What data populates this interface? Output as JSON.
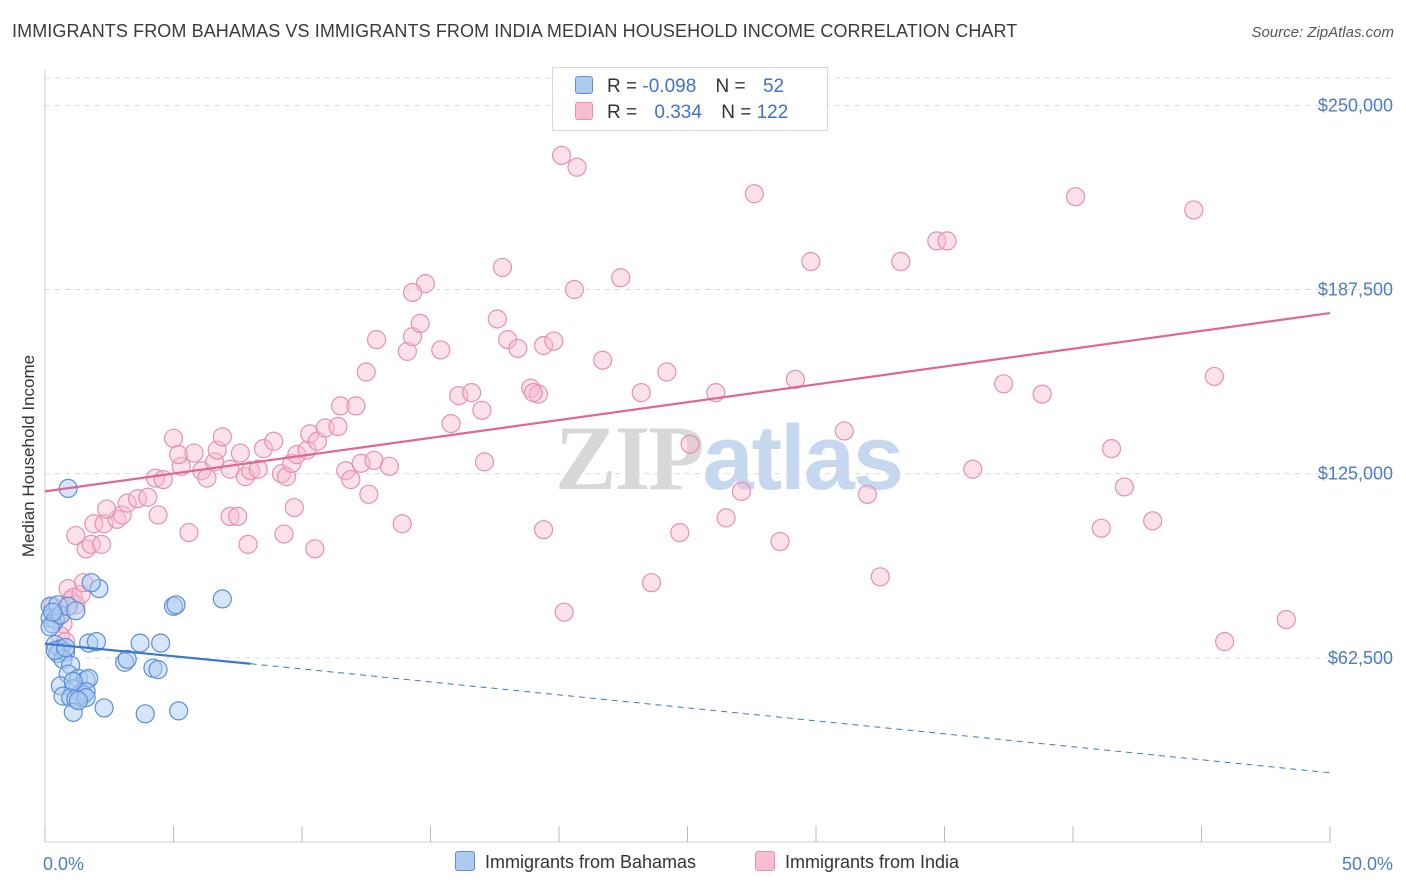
{
  "header": {
    "title": "IMMIGRANTS FROM BAHAMAS VS IMMIGRANTS FROM INDIA MEDIAN HOUSEHOLD INCOME CORRELATION CHART",
    "source": "Source: ZipAtlas.com"
  },
  "watermark": {
    "zip": "ZIP",
    "atlas": "atlas"
  },
  "legend_top": {
    "rows": [
      {
        "r_label": "R =",
        "r_value": "-0.098",
        "n_label": "N =",
        "n_value": "52"
      },
      {
        "r_label": "R =",
        "r_value": "0.334",
        "n_label": "N =",
        "n_value": "122"
      }
    ]
  },
  "legend_bottom": {
    "items": [
      {
        "label": "Immigrants from Bahamas"
      },
      {
        "label": "Immigrants from India"
      }
    ]
  },
  "colors": {
    "bahamas_fill": "#aecbf0",
    "bahamas_stroke": "#5b8fd6",
    "bahamas_line": "#3a78cf",
    "india_fill": "#f7bdd0",
    "india_stroke": "#e690b0",
    "india_line": "#e06695",
    "grid": "#d9d9d9",
    "tick_label": "#4a7cc6"
  },
  "chart_data": {
    "type": "scatter",
    "title": "IMMIGRANTS FROM BAHAMAS VS IMMIGRANTS FROM INDIA MEDIAN HOUSEHOLD INCOME CORRELATION CHART",
    "xlabel": "",
    "ylabel": "Median Household Income",
    "xlim": [
      0,
      50
    ],
    "ylim": [
      0,
      262000
    ],
    "y_ticks": [
      62500,
      125000,
      187500,
      250000
    ],
    "y_tick_labels": [
      "$62,500",
      "$125,000",
      "$187,500",
      "$250,000"
    ],
    "x_tick_labels": [
      "0.0%",
      "50.0%"
    ],
    "grid": "horizontal dashed",
    "legend_position": "top-center",
    "series": [
      {
        "name": "Immigrants from Bahamas",
        "r": -0.098,
        "n": 52,
        "trend": {
          "x0": 0,
          "y0": 67300,
          "x1": 8,
          "y1": 60500,
          "dash_x1": 50,
          "dash_y1": 23500
        },
        "points": [
          [
            0.2,
            80000
          ],
          [
            0.3,
            78000
          ],
          [
            0.2,
            76000
          ],
          [
            0.4,
            75500
          ],
          [
            0.3,
            74000
          ],
          [
            0.2,
            73000
          ],
          [
            0.5,
            80500
          ],
          [
            0.6,
            77000
          ],
          [
            0.9,
            80000
          ],
          [
            1.2,
            78500
          ],
          [
            0.4,
            67000
          ],
          [
            0.6,
            65500
          ],
          [
            0.5,
            64000
          ],
          [
            0.8,
            64500
          ],
          [
            0.7,
            62000
          ],
          [
            1.0,
            60000
          ],
          [
            0.9,
            57000
          ],
          [
            1.3,
            55500
          ],
          [
            1.6,
            55000
          ],
          [
            1.7,
            55500
          ],
          [
            0.6,
            53000
          ],
          [
            1.1,
            52000
          ],
          [
            1.4,
            50500
          ],
          [
            1.5,
            50000
          ],
          [
            1.6,
            51000
          ],
          [
            0.7,
            49500
          ],
          [
            1.0,
            49000
          ],
          [
            1.2,
            48500
          ],
          [
            1.6,
            49000
          ],
          [
            1.1,
            44000
          ],
          [
            2.3,
            45500
          ],
          [
            3.9,
            43500
          ],
          [
            5.2,
            44500
          ],
          [
            1.7,
            67500
          ],
          [
            3.7,
            67500
          ],
          [
            4.5,
            67500
          ],
          [
            3.1,
            61000
          ],
          [
            3.2,
            62000
          ],
          [
            4.2,
            59000
          ],
          [
            4.4,
            58500
          ],
          [
            5.0,
            80000
          ],
          [
            5.1,
            80500
          ],
          [
            6.9,
            82500
          ],
          [
            2.1,
            86000
          ],
          [
            1.8,
            88000
          ],
          [
            0.9,
            120000
          ],
          [
            0.3,
            78000
          ],
          [
            0.4,
            65000
          ],
          [
            0.8,
            66000
          ],
          [
            1.1,
            54500
          ],
          [
            1.3,
            48000
          ],
          [
            2.0,
            68000
          ]
        ]
      },
      {
        "name": "Immigrants from India",
        "r": 0.334,
        "n": 122,
        "trend": {
          "x0": 0,
          "y0": 119000,
          "x1": 50,
          "y1": 179500
        },
        "points": [
          [
            0.3,
            80000
          ],
          [
            0.5,
            77000
          ],
          [
            0.7,
            74000
          ],
          [
            0.6,
            70000
          ],
          [
            0.8,
            68000
          ],
          [
            1.0,
            82000
          ],
          [
            0.9,
            86000
          ],
          [
            1.1,
            83000
          ],
          [
            1.2,
            80500
          ],
          [
            1.4,
            84000
          ],
          [
            1.5,
            88000
          ],
          [
            1.2,
            104000
          ],
          [
            1.6,
            99500
          ],
          [
            1.8,
            101000
          ],
          [
            2.2,
            101000
          ],
          [
            1.9,
            108000
          ],
          [
            2.3,
            108000
          ],
          [
            2.8,
            109500
          ],
          [
            3.0,
            111000
          ],
          [
            2.4,
            113000
          ],
          [
            3.2,
            115000
          ],
          [
            3.6,
            116500
          ],
          [
            4.0,
            117000
          ],
          [
            4.4,
            111000
          ],
          [
            4.3,
            123500
          ],
          [
            4.6,
            123000
          ],
          [
            5.0,
            137000
          ],
          [
            5.3,
            127500
          ],
          [
            5.2,
            131500
          ],
          [
            5.8,
            132000
          ],
          [
            6.1,
            126000
          ],
          [
            6.3,
            123500
          ],
          [
            6.6,
            129000
          ],
          [
            6.7,
            133000
          ],
          [
            6.9,
            137500
          ],
          [
            7.2,
            126500
          ],
          [
            7.6,
            132000
          ],
          [
            7.8,
            124000
          ],
          [
            8.0,
            126000
          ],
          [
            8.3,
            126500
          ],
          [
            8.5,
            133500
          ],
          [
            8.9,
            136000
          ],
          [
            9.2,
            125000
          ],
          [
            9.4,
            124000
          ],
          [
            9.6,
            128500
          ],
          [
            9.8,
            131500
          ],
          [
            10.2,
            133000
          ],
          [
            10.3,
            138500
          ],
          [
            10.6,
            136000
          ],
          [
            10.9,
            140500
          ],
          [
            11.4,
            141000
          ],
          [
            11.7,
            126000
          ],
          [
            11.9,
            123000
          ],
          [
            12.3,
            128500
          ],
          [
            12.8,
            129500
          ],
          [
            13.4,
            127500
          ],
          [
            13.9,
            108000
          ],
          [
            7.2,
            110500
          ],
          [
            7.5,
            110500
          ],
          [
            7.9,
            101000
          ],
          [
            9.3,
            104500
          ],
          [
            9.7,
            113500
          ],
          [
            10.5,
            99500
          ],
          [
            5.6,
            105000
          ],
          [
            12.6,
            118000
          ],
          [
            11.5,
            148000
          ],
          [
            12.1,
            148000
          ],
          [
            12.5,
            159500
          ],
          [
            12.9,
            170500
          ],
          [
            14.1,
            166500
          ],
          [
            14.3,
            171500
          ],
          [
            14.6,
            176000
          ],
          [
            14.8,
            189500
          ],
          [
            14.3,
            186500
          ],
          [
            15.4,
            167000
          ],
          [
            15.8,
            142000
          ],
          [
            16.1,
            151500
          ],
          [
            16.6,
            152500
          ],
          [
            17.0,
            146500
          ],
          [
            17.1,
            129000
          ],
          [
            17.6,
            177500
          ],
          [
            17.8,
            195000
          ],
          [
            18.0,
            170500
          ],
          [
            18.4,
            167500
          ],
          [
            18.9,
            154000
          ],
          [
            19.2,
            152000
          ],
          [
            19.4,
            168500
          ],
          [
            19.8,
            170000
          ],
          [
            20.1,
            233000
          ],
          [
            19.4,
            106000
          ],
          [
            19.0,
            152500
          ],
          [
            20.2,
            78000
          ],
          [
            20.6,
            187500
          ],
          [
            20.7,
            229000
          ],
          [
            21.7,
            163500
          ],
          [
            22.4,
            191500
          ],
          [
            23.2,
            152500
          ],
          [
            23.6,
            88000
          ],
          [
            24.2,
            159500
          ],
          [
            24.7,
            105000
          ],
          [
            25.1,
            135000
          ],
          [
            26.1,
            152500
          ],
          [
            26.5,
            110000
          ],
          [
            27.1,
            119000
          ],
          [
            27.6,
            220000
          ],
          [
            28.6,
            102000
          ],
          [
            29.2,
            157000
          ],
          [
            29.8,
            197000
          ],
          [
            31.1,
            139500
          ],
          [
            32.0,
            118000
          ],
          [
            32.5,
            90000
          ],
          [
            33.3,
            197000
          ],
          [
            34.7,
            204000
          ],
          [
            35.1,
            204000
          ],
          [
            36.1,
            126500
          ],
          [
            37.3,
            155500
          ],
          [
            38.8,
            152000
          ],
          [
            40.1,
            219000
          ],
          [
            41.1,
            106500
          ],
          [
            41.5,
            133500
          ],
          [
            42.0,
            120500
          ],
          [
            43.1,
            109000
          ],
          [
            44.7,
            214500
          ],
          [
            45.5,
            158000
          ],
          [
            45.9,
            68000
          ],
          [
            48.3,
            75500
          ]
        ]
      }
    ]
  }
}
